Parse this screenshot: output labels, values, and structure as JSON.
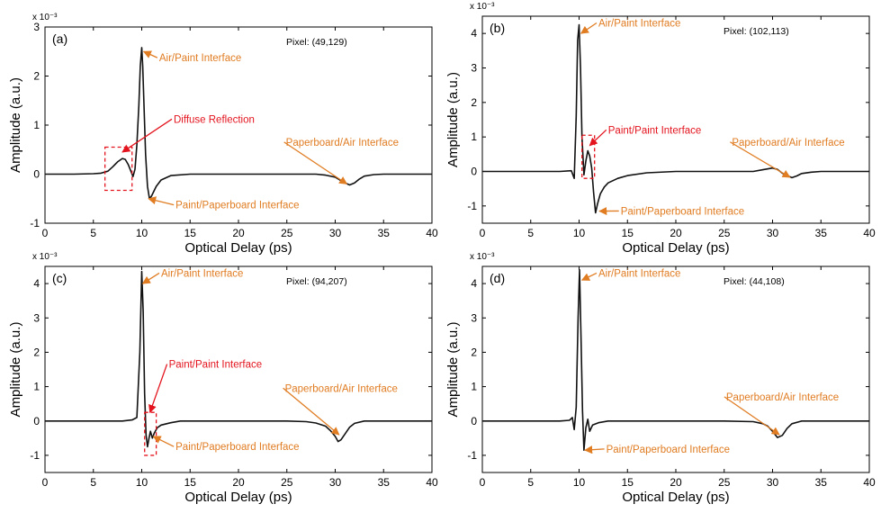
{
  "colors": {
    "trace": "#111111",
    "orange": "#E07C22",
    "red": "#E3141E"
  },
  "chart_data": [
    {
      "type": "line",
      "panel_label": "(a)",
      "pixel_label": "Pixel: (49,129)",
      "exponent_label": "x 10⁻³",
      "xlabel": "Optical Delay (ps)",
      "ylabel": "Amplitude (a.u.)",
      "xlim": [
        0,
        40
      ],
      "ylim": [
        -1,
        3
      ],
      "xticks": [
        0,
        5,
        10,
        15,
        20,
        25,
        30,
        35,
        40
      ],
      "yticks": [
        -1,
        0,
        1,
        2,
        3
      ],
      "series": [
        {
          "x": [
            0,
            3,
            5,
            5.8,
            6.5,
            7,
            7.5,
            8,
            8.3,
            8.6,
            8.9,
            9.1,
            9.3,
            9.5,
            9.7,
            9.85,
            10,
            10.1,
            10.25,
            10.4,
            10.6,
            10.8,
            11,
            11.5,
            12,
            13,
            15,
            20,
            25,
            28,
            29,
            30,
            30.5,
            31,
            31.5,
            32,
            32.5,
            33,
            34,
            35,
            37,
            40
          ],
          "values": [
            0,
            0,
            0.01,
            0.02,
            0.06,
            0.15,
            0.25,
            0.32,
            0.3,
            0.2,
            0.05,
            -0.05,
            0.1,
            0.6,
            1.4,
            2.2,
            2.58,
            2.2,
            1.3,
            0.4,
            -0.25,
            -0.5,
            -0.45,
            -0.25,
            -0.12,
            -0.03,
            0,
            0,
            0,
            0,
            -0.02,
            -0.06,
            -0.12,
            -0.18,
            -0.22,
            -0.18,
            -0.1,
            -0.04,
            -0.01,
            0,
            0,
            0
          ]
        }
      ],
      "annotations": [
        {
          "text": "Air/Paint Interface",
          "color": "orange",
          "x": 11.8,
          "y": 2.3,
          "tx": 10.2,
          "ty": 2.5
        },
        {
          "text": "Diffuse Reflection",
          "color": "red",
          "x": 13.3,
          "y": 1.05,
          "tx": 8.0,
          "ty": 0.45
        },
        {
          "text": "Paint/Paperboard Interface",
          "color": "orange",
          "x": 13.5,
          "y": -0.7,
          "tx": 10.7,
          "ty": -0.5
        },
        {
          "text": "Paperboard/Air Interface",
          "color": "orange",
          "x": 24.9,
          "y": 0.58,
          "tx": 31.2,
          "ty": -0.2
        }
      ],
      "boxes": [
        {
          "x0": 6.2,
          "x1": 9.0,
          "y0": -0.33,
          "y1": 0.55
        }
      ]
    },
    {
      "type": "line",
      "panel_label": "(b)",
      "pixel_label": "Pixel: (102,113)",
      "exponent_label": "x 10⁻³",
      "xlabel": "Optical Delay (ps)",
      "ylabel": "Amplitude (a.u.)",
      "xlim": [
        0,
        40
      ],
      "ylim": [
        -1.5,
        4.5
      ],
      "xticks": [
        0,
        5,
        10,
        15,
        20,
        25,
        30,
        35,
        40
      ],
      "yticks": [
        -1,
        0,
        1,
        2,
        3,
        4
      ],
      "series": [
        {
          "x": [
            0,
            8,
            9.2,
            9.5,
            9.7,
            9.85,
            10,
            10.15,
            10.3,
            10.5,
            10.7,
            10.9,
            11.1,
            11.3,
            11.5,
            11.7,
            11.9,
            12.2,
            12.6,
            13,
            14,
            15,
            17,
            20,
            25,
            28,
            29,
            30,
            30.5,
            31,
            31.5,
            32,
            32.5,
            33,
            34,
            35,
            37,
            40
          ],
          "values": [
            0,
            0,
            0.02,
            -0.2,
            1.6,
            3.8,
            4.25,
            3.0,
            1.0,
            -0.1,
            0.3,
            0.6,
            0.45,
            0.1,
            -0.6,
            -1.2,
            -0.95,
            -0.65,
            -0.45,
            -0.33,
            -0.2,
            -0.12,
            -0.04,
            0,
            0,
            0,
            0.05,
            0.1,
            0.06,
            -0.05,
            -0.12,
            -0.18,
            -0.13,
            -0.06,
            -0.02,
            0,
            0,
            0
          ]
        }
      ],
      "annotations": [
        {
          "text": "Air/Paint Interface",
          "color": "orange",
          "x": 12.0,
          "y": 4.2,
          "tx": 10.2,
          "ty": 4.0
        },
        {
          "text": "Paint/Paint Interface",
          "color": "red",
          "x": 13.0,
          "y": 1.1,
          "tx": 11.1,
          "ty": 0.75
        },
        {
          "text": "Paperboard/Air Interface",
          "color": "orange",
          "x": 25.8,
          "y": 0.75,
          "tx": 31.8,
          "ty": -0.17
        },
        {
          "text": "Paint/Paperboard Interface",
          "color": "orange",
          "x": 14.3,
          "y": -1.25,
          "tx": 12.1,
          "ty": -1.15
        }
      ],
      "boxes": [
        {
          "x0": 10.3,
          "x1": 11.6,
          "y0": -0.2,
          "y1": 1.05
        }
      ]
    },
    {
      "type": "line",
      "panel_label": "(c)",
      "pixel_label": "Pixel: (94,207)",
      "exponent_label": "x 10⁻³",
      "xlabel": "Optical Delay (ps)",
      "ylabel": "Amplitude (a.u.)",
      "xlim": [
        0,
        40
      ],
      "ylim": [
        -1.5,
        4.5
      ],
      "xticks": [
        0,
        5,
        10,
        15,
        20,
        25,
        30,
        35,
        40
      ],
      "yticks": [
        -1,
        0,
        1,
        2,
        3,
        4
      ],
      "series": [
        {
          "x": [
            0,
            8,
            9,
            9.5,
            9.8,
            10,
            10.15,
            10.3,
            10.45,
            10.6,
            10.75,
            10.9,
            11.1,
            11.3,
            11.6,
            12,
            13,
            14,
            16,
            20,
            25,
            27,
            28,
            29,
            29.5,
            30,
            30.3,
            30.6,
            31,
            31.5,
            32,
            33,
            35,
            40
          ],
          "values": [
            0,
            0,
            0.03,
            0.1,
            2.0,
            4.35,
            3.2,
            0.8,
            -0.4,
            -0.75,
            -0.5,
            -0.3,
            -0.5,
            -0.35,
            -0.2,
            -0.12,
            -0.05,
            0,
            0,
            0,
            0,
            -0.02,
            -0.06,
            -0.15,
            -0.28,
            -0.45,
            -0.6,
            -0.55,
            -0.38,
            -0.18,
            -0.07,
            0,
            0,
            0
          ]
        }
      ],
      "annotations": [
        {
          "text": "Air/Paint Interface",
          "color": "orange",
          "x": 12.0,
          "y": 4.2,
          "tx": 10.1,
          "ty": 4.0
        },
        {
          "text": "Paint/Paint Interface",
          "color": "red",
          "x": 12.8,
          "y": 1.55,
          "tx": 10.85,
          "ty": 0.25
        },
        {
          "text": "Paperboard/Air Interface",
          "color": "orange",
          "x": 24.8,
          "y": 0.85,
          "tx": 30.4,
          "ty": -0.4
        },
        {
          "text": "Paint/Paperboard Interface",
          "color": "orange",
          "x": 13.5,
          "y": -0.85,
          "tx": 11.2,
          "ty": -0.45
        }
      ],
      "boxes": [
        {
          "x0": 10.3,
          "x1": 11.5,
          "y0": -1.0,
          "y1": 0.25
        }
      ]
    },
    {
      "type": "line",
      "panel_label": "(d)",
      "pixel_label": "Pixel: (44,108)",
      "exponent_label": "x 10⁻³",
      "xlabel": "Optical Delay (ps)",
      "ylabel": "Amplitude (a.u.)",
      "xlim": [
        0,
        40
      ],
      "ylim": [
        -1.5,
        4.5
      ],
      "xticks": [
        0,
        5,
        10,
        15,
        20,
        25,
        30,
        35,
        40
      ],
      "yticks": [
        -1,
        0,
        1,
        2,
        3,
        4
      ],
      "series": [
        {
          "x": [
            0,
            8,
            9,
            9.3,
            9.5,
            9.7,
            9.9,
            10.05,
            10.2,
            10.35,
            10.5,
            10.7,
            10.9,
            11.1,
            11.4,
            12,
            13,
            15,
            20,
            25,
            28,
            29,
            29.5,
            30,
            30.5,
            31,
            31.5,
            32,
            33,
            35,
            40
          ],
          "values": [
            0,
            0,
            0.02,
            0.1,
            -0.25,
            0.4,
            3.0,
            4.4,
            2.5,
            0.3,
            -0.85,
            -0.2,
            0.05,
            -0.3,
            -0.12,
            -0.05,
            0,
            0,
            0,
            0,
            -0.02,
            -0.08,
            -0.15,
            -0.3,
            -0.48,
            -0.42,
            -0.22,
            -0.08,
            0,
            0,
            0
          ]
        }
      ],
      "annotations": [
        {
          "text": "Air/Paint Interface",
          "color": "orange",
          "x": 12.0,
          "y": 4.2,
          "tx": 10.3,
          "ty": 4.1
        },
        {
          "text": "Paperboard/Air Interface",
          "color": "orange",
          "x": 25.2,
          "y": 0.6,
          "tx": 30.7,
          "ty": -0.4
        },
        {
          "text": "Paint/Paperboard Interface",
          "color": "orange",
          "x": 12.8,
          "y": -0.92,
          "tx": 10.6,
          "ty": -0.85
        }
      ],
      "boxes": []
    }
  ]
}
